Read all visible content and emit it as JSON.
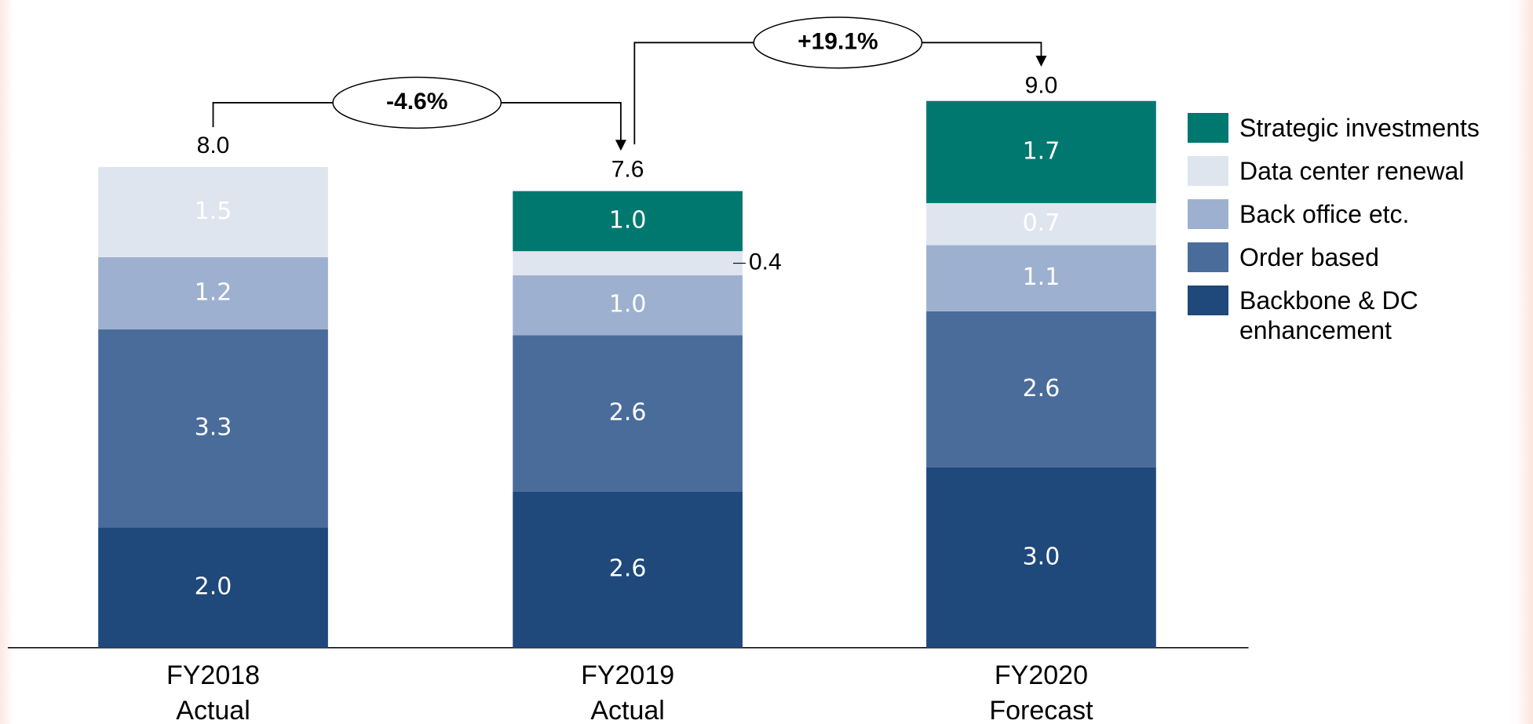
{
  "chart_data": {
    "type": "stacked-bar",
    "categories": [
      "FY2018 Actual",
      "FY2019 Actual",
      "FY2020 Forecast"
    ],
    "series": [
      {
        "name": "Backbone & DC enhancement",
        "color": "#1f487b",
        "values": [
          2.0,
          2.6,
          3.0
        ],
        "value_labels": [
          "2.0",
          "2.6",
          "3.0"
        ]
      },
      {
        "name": "Order based",
        "color": "#4a6c9a",
        "values": [
          3.3,
          2.6,
          2.6
        ],
        "value_labels": [
          "3.3",
          "2.6",
          "2.6"
        ]
      },
      {
        "name": "Back office etc.",
        "color": "#9db0cf",
        "values": [
          1.2,
          1.0,
          1.1
        ],
        "value_labels": [
          "1.2",
          "1.0",
          "1.1"
        ]
      },
      {
        "name": "Data center renewal",
        "color": "#dfe5ef",
        "values": [
          1.5,
          0.4,
          0.7
        ],
        "value_labels": [
          "1.5",
          "0.4",
          "0.7"
        ]
      },
      {
        "name": "Strategic investments",
        "color": "#00786f",
        "values": [
          null,
          1.0,
          1.7
        ],
        "value_labels": [
          null,
          "1.0",
          "1.7"
        ]
      }
    ],
    "totals": [
      8.0,
      7.6,
      9.0
    ],
    "total_labels": [
      "8.0",
      "7.6",
      "9.0"
    ],
    "annotations": [
      "-4.6%",
      "+19.1%"
    ]
  }
}
